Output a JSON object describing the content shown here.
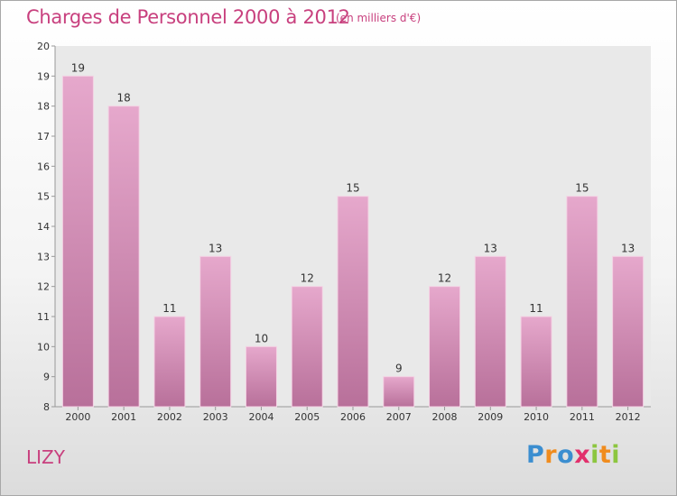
{
  "header": {
    "title": "Charges de Personnel 2000 à 2012",
    "subtitle": "(en milliers d'€)"
  },
  "footer": {
    "commune": "LIZY",
    "logo_letters": [
      {
        "char": "P",
        "color": "#3b8ed0"
      },
      {
        "char": "r",
        "color": "#f08c1e"
      },
      {
        "char": "o",
        "color": "#3b8ed0"
      },
      {
        "char": "x",
        "color": "#e2306c"
      },
      {
        "char": "i",
        "color": "#8cc63f"
      },
      {
        "char": "t",
        "color": "#f08c1e"
      },
      {
        "char": "i",
        "color": "#8cc63f"
      }
    ]
  },
  "chart_data": {
    "type": "bar",
    "categories": [
      "2000",
      "2001",
      "2002",
      "2003",
      "2004",
      "2005",
      "2006",
      "2007",
      "2008",
      "2009",
      "2010",
      "2011",
      "2012"
    ],
    "values": [
      19,
      18,
      11,
      13,
      10,
      12,
      15,
      9,
      12,
      13,
      11,
      15,
      13
    ],
    "ylim": [
      8,
      20
    ],
    "yticks": [
      8,
      9,
      10,
      11,
      12,
      13,
      14,
      15,
      16,
      17,
      18,
      19,
      20
    ],
    "grid": false,
    "legend": "none",
    "colors": {
      "bar_top": "#e6a8cc",
      "bar_bottom": "#b8709a",
      "bar_edge": "#f4d2e4",
      "plot_background": "#e9e9e9",
      "axis": "#999999"
    }
  }
}
